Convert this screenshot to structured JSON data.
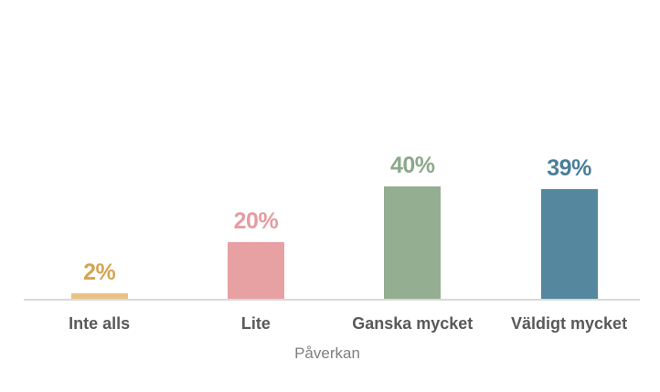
{
  "chart_data": {
    "type": "bar",
    "title": "",
    "categories": [
      "Inte alls",
      "Lite",
      "Ganska mycket",
      "Väldigt mycket"
    ],
    "values": [
      2,
      20,
      40,
      39
    ],
    "data_labels": [
      "2%",
      "20%",
      "40%",
      "39%"
    ],
    "xlabel": "Påverkan",
    "ylabel": "",
    "ylim": [
      0,
      45
    ],
    "grid": false,
    "legend": false,
    "bar_colors": [
      "#E9C385",
      "#E8A1A3",
      "#93AE90",
      "#55889E"
    ],
    "data_label_colors": [
      "#D5A455",
      "#E59CA2",
      "#8CA98B",
      "#4A7E99"
    ],
    "category_label_color": "#595959",
    "axis_title_color": "#7F7F7F",
    "axis_line_color": "#D9D9D9",
    "background_color": "#FFFFFF"
  }
}
